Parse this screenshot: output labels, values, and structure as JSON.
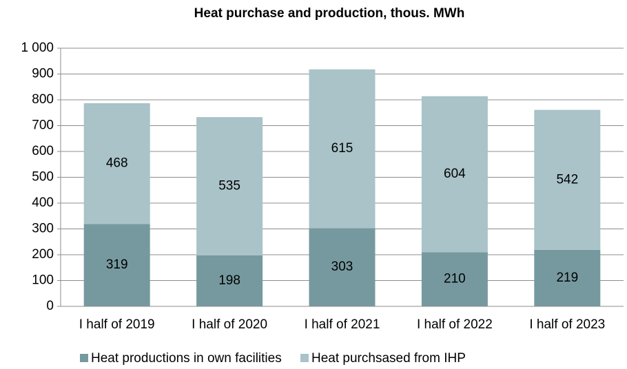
{
  "chart_data": {
    "type": "stacked_bar",
    "title": "Heat purchase and production, thous. MWh",
    "categories": [
      "I half of 2019",
      "I half of 2020",
      "I half of 2021",
      "I half of 2022",
      "I half of 2023"
    ],
    "series": [
      {
        "name": "Heat productions in own facilities",
        "color": "#76999f",
        "values": [
          319,
          198,
          303,
          210,
          219
        ]
      },
      {
        "name": "Heat purchsased from IHP",
        "color": "#a9c3c8",
        "values": [
          468,
          535,
          615,
          604,
          542
        ]
      }
    ],
    "ylim": [
      0,
      1000
    ],
    "yticks": [
      0,
      100,
      200,
      300,
      400,
      500,
      600,
      700,
      800,
      900,
      {
        "value": 1000,
        "label": "1 000"
      }
    ],
    "grid": true,
    "legend": "bottom"
  }
}
